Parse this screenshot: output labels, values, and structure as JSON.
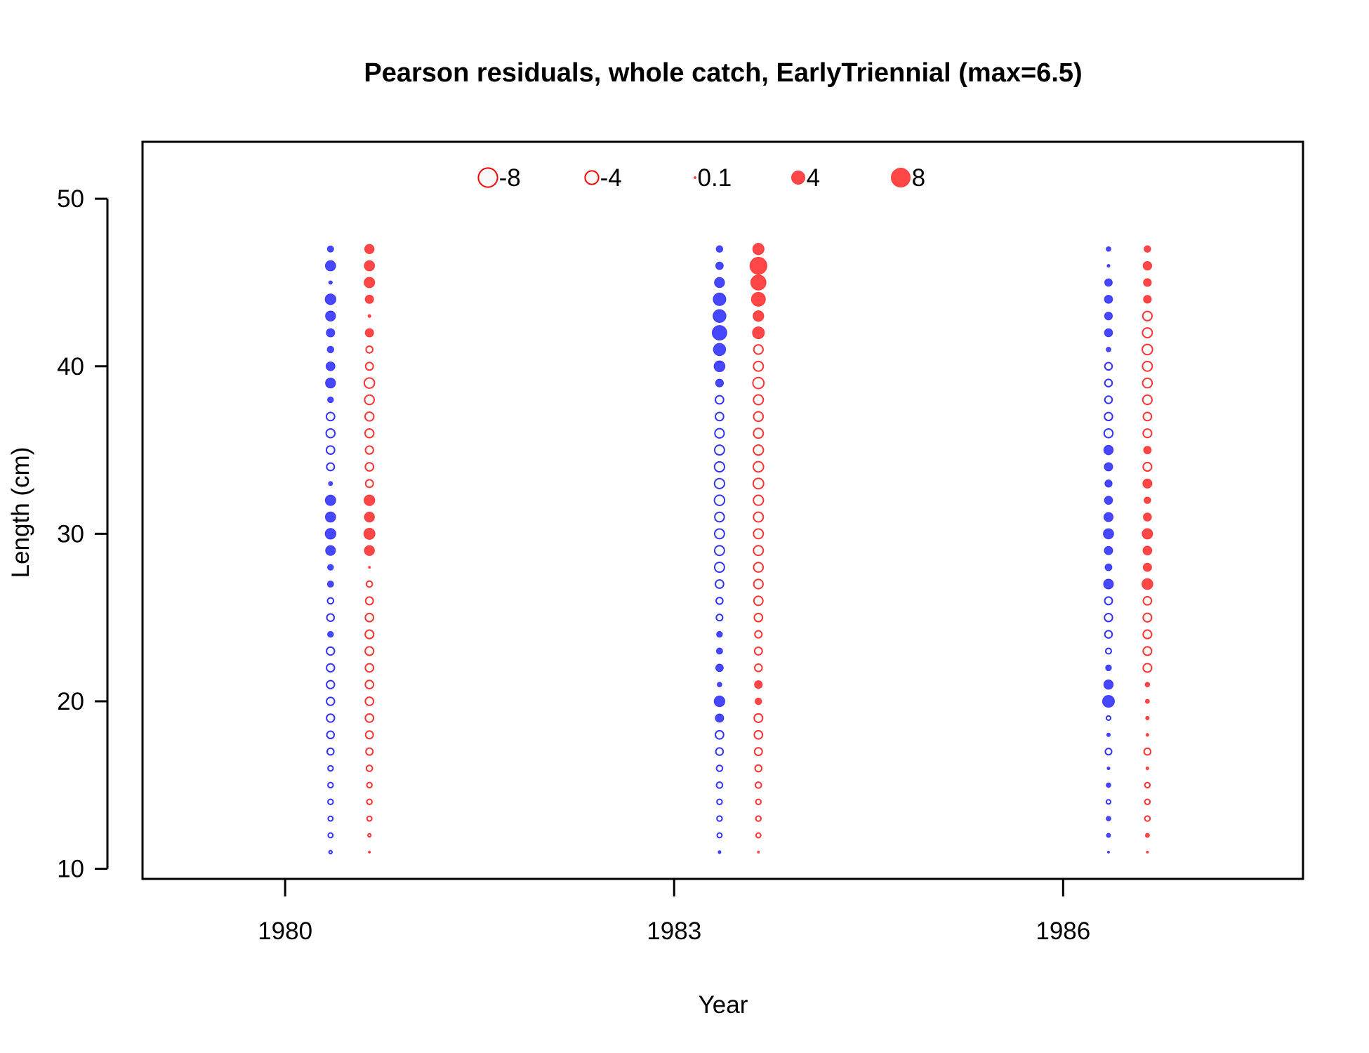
{
  "chart_data": {
    "type": "scatter",
    "subtype": "bubble",
    "title": "Pearson residuals, whole catch, EarlyTriennial (max=6.5)",
    "xlabel": "Year",
    "ylabel": "Length (cm)",
    "xlim": [
      1978.9,
      1987.85
    ],
    "ylim": [
      9.4,
      53.4
    ],
    "x_ticks": [
      1980,
      1983,
      1986
    ],
    "x_tick_labels": [
      "1980",
      "1983",
      "1986"
    ],
    "y_ticks": [
      10,
      20,
      30,
      40,
      50
    ],
    "y_tick_labels": [
      "10",
      "20",
      "30",
      "40",
      "50"
    ],
    "grid": false,
    "legend_position": "top",
    "legend": [
      {
        "label": "-8",
        "value": -8
      },
      {
        "label": "-4",
        "value": -4
      },
      {
        "label": "0.1",
        "value": 0.1
      },
      {
        "label": "4",
        "value": 4
      },
      {
        "label": "8",
        "value": 8
      }
    ],
    "colors": {
      "female": "#0000FF",
      "male": "#FF0000",
      "legend": "#FF0000",
      "axis": "#000000"
    },
    "lengths": [
      11,
      12,
      13,
      14,
      15,
      16,
      17,
      18,
      19,
      20,
      21,
      22,
      23,
      24,
      25,
      26,
      27,
      28,
      29,
      30,
      31,
      32,
      33,
      34,
      35,
      36,
      37,
      38,
      39,
      40,
      41,
      42,
      43,
      44,
      45,
      46,
      47
    ],
    "series": [
      {
        "year": 1980,
        "x": 1980.35,
        "sex": "female",
        "residuals": [
          -0.2,
          -0.5,
          -0.5,
          -0.6,
          -0.6,
          -0.6,
          -1,
          -1.2,
          -1.4,
          -1.4,
          -1.4,
          -1.4,
          -1.4,
          0.8,
          -1.2,
          -0.8,
          0.9,
          0.8,
          2.2,
          2.6,
          2.4,
          2.5,
          0.4,
          -1.3,
          -1.5,
          -1.7,
          -1.5,
          0.8,
          2.3,
          1.8,
          1,
          1.6,
          2.3,
          2.6,
          0.3,
          2.4,
          0.9
        ]
      },
      {
        "year": 1980,
        "x": 1980.65,
        "sex": "male",
        "residuals": [
          0.1,
          -0.2,
          -0.5,
          -0.6,
          -0.6,
          -0.8,
          -1.1,
          -1.3,
          -1.5,
          -1.5,
          -1.5,
          -1.5,
          -1.6,
          -1.6,
          -1.5,
          -1.3,
          -0.8,
          0.1,
          2.3,
          2.8,
          2.3,
          2.6,
          -1.3,
          -1.5,
          -1.4,
          -1.7,
          -1.7,
          -2,
          -2.3,
          -1.3,
          -1,
          1.6,
          0.2,
          1.6,
          2.5,
          2.4,
          2
        ]
      },
      {
        "year": 1983,
        "x": 1983.35,
        "sex": "female",
        "residuals": [
          0.2,
          -0.5,
          -0.6,
          -0.6,
          -0.8,
          -0.8,
          -1.2,
          -1.5,
          1.6,
          2.6,
          0.5,
          1.3,
          0.9,
          0.8,
          -0.9,
          -1,
          -1.5,
          -2.1,
          -2.1,
          -2.1,
          -2,
          -2.3,
          -2.2,
          -2.2,
          -2.1,
          -1.9,
          -1.5,
          -1.5,
          1.4,
          2.7,
          3.4,
          4.8,
          3.8,
          3.6,
          2.3,
          1.3,
          1
        ]
      },
      {
        "year": 1983,
        "x": 1983.65,
        "sex": "male",
        "residuals": [
          0.1,
          -0.5,
          -0.6,
          -0.6,
          -0.8,
          -1,
          -1.3,
          -1.5,
          -1.6,
          1,
          1.4,
          -1.2,
          -1.3,
          -1.1,
          -1.5,
          -1.8,
          -1.9,
          -2,
          -2.1,
          -2.1,
          -2.1,
          -2.2,
          -2.4,
          -2.3,
          -2.2,
          -2.1,
          -2,
          -2.1,
          -2.7,
          -2.1,
          -1.9,
          3.2,
          2.6,
          4.4,
          5.2,
          6.5,
          2.9
        ]
      },
      {
        "year": 1986,
        "x": 1986.35,
        "sex": "female",
        "residuals": [
          0.1,
          0.4,
          0.5,
          -0.4,
          0.5,
          0.2,
          -0.9,
          0.3,
          -0.4,
          3.2,
          2,
          0.8,
          -0.7,
          -1.2,
          -1.4,
          -1.3,
          2.2,
          1.1,
          1.6,
          2.4,
          1.9,
          1.5,
          1.2,
          1.6,
          2,
          -1.7,
          -1.4,
          -1.2,
          -1.2,
          -1.2,
          0.5,
          1.5,
          1.4,
          1.5,
          1.3,
          0.2,
          0.5
        ]
      },
      {
        "year": 1986,
        "x": 1986.65,
        "sex": "male",
        "residuals": [
          0.1,
          0.4,
          -0.6,
          -0.6,
          -0.6,
          0.2,
          -1,
          0.2,
          0.3,
          0.4,
          0.5,
          -1.6,
          -1.6,
          -1.6,
          -1.6,
          -1.5,
          2.7,
          1.6,
          1.8,
          2.5,
          1.5,
          1,
          1.9,
          -1.6,
          1.3,
          -1.6,
          -1.5,
          -1.9,
          -2,
          -2.1,
          -2.3,
          -2.1,
          -1.9,
          1.4,
          1.4,
          1.7,
          1
        ]
      }
    ]
  }
}
